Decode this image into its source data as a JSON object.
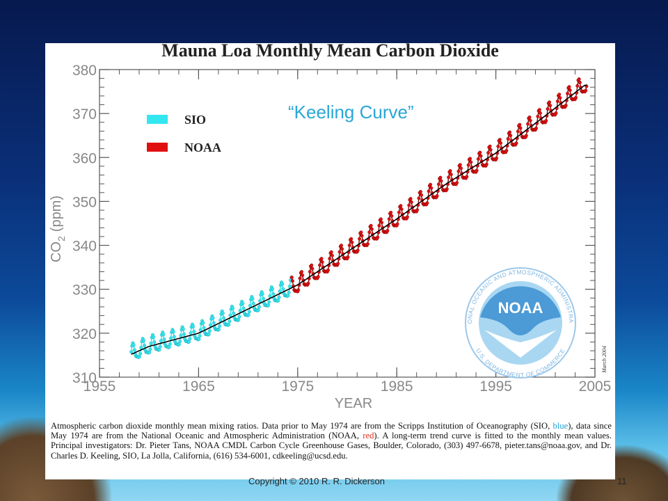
{
  "slide": {
    "copyright": "Copyright © 2010  R. R. Dickerson",
    "page_number": "11"
  },
  "caption": {
    "part1": "Atmospheric carbon dioxide monthly mean mixing ratios.  Data prior to May 1974 are from the Scripps Institution of Oceanography (SIO, ",
    "blue_word": "blue",
    "part2": "), data since May 1974 are from the National Oceanic and Atmospheric Administration (NOAA, ",
    "red_word": "red",
    "part3": "). A long-term trend curve is fitted to the monthly mean values.  Principal investigators:  Dr. Pieter Tans, NOAA CMDL Carbon Cycle Greenhouse Gases, Boulder, Colorado, (303) 497-6678, pieter.tans@noaa.gov, and  Dr. Charles D. Keeling, SIO, La Jolla, California, (616) 534-6001, cdkeeling@ucsd.edu."
  },
  "logo": {
    "acronym": "NOAA",
    "ring_top": "NATIONAL OCEANIC AND ATMOSPHERIC ADMINISTRATION",
    "ring_bottom": "U.S. DEPARTMENT OF COMMERCE",
    "colors": {
      "blue": "#4c9ad6",
      "light": "#a9d7f2",
      "ring": "#9cc8ea"
    }
  },
  "chart_data": {
    "type": "line",
    "title": "Mauna Loa Monthly Mean Carbon Dioxide",
    "annotation": "“Keeling  Curve”",
    "date_stamp": "March 2004",
    "xlabel": "YEAR",
    "ylabel": "CO2 (ppm)",
    "ylabel_main": "CO",
    "ylabel_sub": "2",
    "ylabel_unit": "(ppm)",
    "xlim": [
      1955,
      2005
    ],
    "ylim": [
      310,
      380
    ],
    "x_ticks": [
      "1955",
      "1965",
      "1975",
      "1985",
      "1995",
      "2005"
    ],
    "y_ticks": [
      "310",
      "320",
      "330",
      "340",
      "350",
      "360",
      "370",
      "380"
    ],
    "legend_position": "top-left",
    "grid": false,
    "colors": {
      "SIO": "#33e6f0",
      "NOAA": "#e01010",
      "trend": "#000000"
    },
    "series": [
      {
        "name": "SIO",
        "x_range": [
          1958.2,
          1974.4
        ],
        "seasonal_amplitude_ppm": 3.0
      },
      {
        "name": "NOAA",
        "x_range": [
          1974.4,
          2004.2
        ],
        "seasonal_amplitude_ppm": 3.1
      },
      {
        "name": "trend",
        "x": [
          1958,
          1960,
          1965,
          1970,
          1975,
          1980,
          1985,
          1990,
          1995,
          2000,
          2004
        ],
        "values": [
          315.0,
          317.0,
          320.0,
          325.5,
          331.0,
          338.5,
          346.0,
          354.0,
          361.0,
          369.5,
          376.5
        ]
      }
    ]
  }
}
